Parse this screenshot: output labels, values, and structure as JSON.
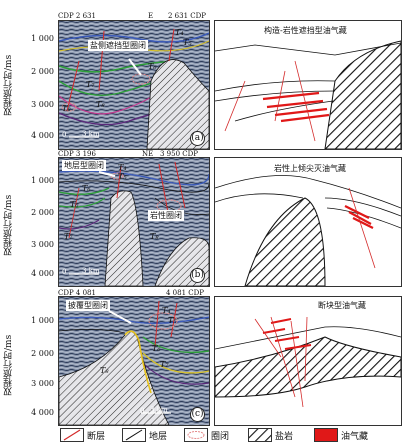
{
  "y_axis_label": "双程旅行时/ms",
  "time_ticks": [
    "1 000",
    "2 000",
    "3 000",
    "4 000"
  ],
  "panels": [
    {
      "cdp_left": "CDP 2 631",
      "cdp_right": "2 631 CDP",
      "direction": "E",
      "trap_label": "盐侧遮挡型圈闭",
      "scale": "3 km",
      "origin": "0",
      "panel_tag": "(a)",
      "horizons": [
        "T₄",
        "T₅",
        "T₆",
        "T₇",
        "T₈",
        "T₈"
      ],
      "schematic_title": "构造-岩性遮挡型油气藏"
    },
    {
      "cdp_left": "CDP 3 196",
      "cdp_right": "3 950 CDP",
      "direction": "NE",
      "trap_label": "地层型圈闭",
      "trap_label_2": "岩性圈闭",
      "scale": "3 km",
      "origin": "0",
      "panel_tag": "(b)",
      "horizons": [
        "T₄",
        "T₅",
        "T₆",
        "T₆",
        "T₇",
        "T₈"
      ],
      "schematic_title": "岩性上倾尖灭油气藏"
    },
    {
      "cdp_left": "CDP 4 081",
      "cdp_right": "4 081 CDP",
      "direction": "",
      "trap_label": "披覆型圈闭",
      "scale": "3 km",
      "origin": "0",
      "panel_tag": "(c)",
      "horizons": [
        "T₄",
        "T₅",
        "T₆",
        "T₇",
        "T₈"
      ],
      "schematic_title": "断块型油气藏"
    }
  ],
  "legend": [
    {
      "key": "fault",
      "label": "断层"
    },
    {
      "key": "horizon",
      "label": "地层"
    },
    {
      "key": "trap",
      "label": "圈闭"
    },
    {
      "key": "salt",
      "label": "盐岩"
    },
    {
      "key": "reservoir",
      "label": "油气藏"
    }
  ],
  "colors": {
    "fault": "#d42a2a",
    "trap": "#e58a8a",
    "reservoir": "#e01818",
    "seismic_bg": "#6f7f97",
    "horizon_green": "#2e9e3a",
    "horizon_yellow": "#e6c21c"
  }
}
